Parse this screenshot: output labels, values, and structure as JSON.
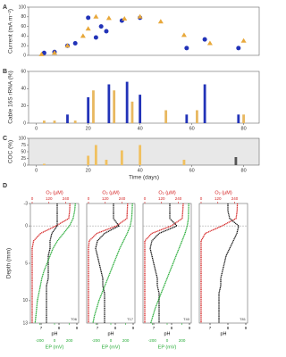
{
  "chart_data": [
    {
      "type": "scatter",
      "panel_label": "A",
      "ylabel": "Current (mA m⁻²)",
      "xlim": [
        -3,
        86
      ],
      "ylim": [
        0,
        100
      ],
      "yticks": [
        0,
        20,
        40,
        60,
        80,
        100
      ],
      "series": [
        {
          "color": "#2233b8",
          "marker": "circle",
          "x": [
            3,
            7,
            12,
            15,
            20,
            23,
            25,
            27,
            33,
            40,
            58,
            65,
            78
          ],
          "values": [
            5,
            7,
            20,
            25,
            78,
            37,
            60,
            50,
            72,
            78,
            15,
            33,
            15
          ]
        },
        {
          "color": "#e8a83a",
          "marker": "triangle",
          "x": [
            2,
            7,
            12,
            18,
            20,
            23,
            28,
            34,
            40,
            48,
            57,
            67,
            80
          ],
          "values": [
            2,
            5,
            20,
            40,
            55,
            80,
            77,
            76,
            80,
            70,
            42,
            25,
            30
          ]
        }
      ]
    },
    {
      "type": "bar",
      "panel_label": "B",
      "ylabel": "Cable 16S rRNA (%)",
      "xlim": [
        -3,
        86
      ],
      "xticks": [
        0,
        20,
        40,
        60,
        80
      ],
      "ylim": [
        0,
        60
      ],
      "yticks": [
        0,
        20,
        40,
        60
      ],
      "series": [
        {
          "color": "#2233b8",
          "x": [
            12,
            20,
            28,
            35,
            40,
            58,
            65,
            78
          ],
          "values": [
            10,
            30,
            45,
            48,
            33,
            10,
            45,
            10
          ]
        },
        {
          "color": "#e8b860",
          "x": [
            3,
            7,
            15,
            22,
            30,
            37,
            50,
            62,
            80
          ],
          "values": [
            3,
            3,
            3,
            38,
            38,
            25,
            15,
            15,
            10
          ]
        }
      ]
    },
    {
      "type": "bar",
      "panel_label": "C",
      "ylabel": "COC (%)",
      "xlabel": "Time (days)",
      "background": "#e8e8e8",
      "xlim": [
        -3,
        86
      ],
      "xticks": [
        0,
        20,
        40,
        60,
        80
      ],
      "ylim": [
        0,
        100
      ],
      "yticks": [
        0,
        25,
        50,
        75,
        100
      ],
      "series": [
        {
          "color": "#f0c060",
          "x": [
            3,
            20,
            23,
            27,
            33,
            40,
            57
          ],
          "values": [
            5,
            35,
            75,
            20,
            55,
            75,
            20
          ]
        },
        {
          "color": "#555555",
          "x": [
            77
          ],
          "values": [
            30
          ]
        }
      ]
    },
    {
      "type": "profile",
      "panel_label": "D",
      "ylabel": "Depth (mm)",
      "tag": "T06",
      "depth": [
        -3,
        -2,
        -1,
        0,
        1,
        2,
        3,
        4,
        5,
        6,
        7,
        8,
        9,
        10,
        11,
        12,
        13
      ],
      "ylim": [
        -3,
        13
      ],
      "yticks": [
        -3,
        0,
        5,
        10,
        13
      ],
      "series": [
        {
          "label": "O₂ (µM)",
          "color": "#d42020",
          "axis": "top",
          "xlim": [
            0,
            320
          ],
          "xticks": [
            0,
            120,
            240
          ],
          "values": [
            270,
            268,
            262,
            170,
            60,
            10,
            0,
            0,
            0,
            0,
            0,
            0,
            0,
            0,
            0,
            0,
            0
          ]
        },
        {
          "label": "pH",
          "color": "#111111",
          "axis": "bottom",
          "xlim": [
            6.5,
            9
          ],
          "xticks": [
            7,
            8,
            9
          ],
          "values": [
            7.9,
            7.9,
            7.9,
            7.9,
            7.6,
            7.5,
            7.5,
            7.4,
            7.4,
            7.4,
            7.4,
            7.3,
            7.3,
            7.3,
            7.3,
            7.3,
            7.3
          ]
        },
        {
          "label": "EP (mV)",
          "color": "#22aa33",
          "axis": "bottom2",
          "xlim": [
            -300,
            300
          ],
          "xticks": [
            -200,
            0,
            200
          ],
          "values": [
            280,
            270,
            250,
            200,
            120,
            40,
            -20,
            -60,
            -100,
            -140,
            -170,
            -190,
            -210,
            -230,
            -240,
            -250,
            -260
          ]
        }
      ]
    },
    {
      "type": "profile",
      "tag": "T17",
      "depth": [
        -3,
        -2,
        -1,
        0,
        1,
        2,
        3,
        4,
        5,
        6,
        7,
        8,
        9,
        10,
        11,
        12,
        13
      ],
      "ylim": [
        -3,
        13
      ],
      "series": [
        {
          "label": "O₂ (µM)",
          "color": "#d42020",
          "axis": "top",
          "xlim": [
            0,
            320
          ],
          "xticks": [
            0,
            120,
            240
          ],
          "values": [
            280,
            278,
            275,
            200,
            60,
            5,
            0,
            0,
            0,
            0,
            0,
            0,
            0,
            0,
            0,
            0,
            0
          ]
        },
        {
          "label": "pH",
          "color": "#111111",
          "axis": "bottom",
          "xlim": [
            6.5,
            9
          ],
          "xticks": [
            7,
            8,
            9
          ],
          "values": [
            7.9,
            7.9,
            7.9,
            8.2,
            7.4,
            7.0,
            6.9,
            7.0,
            7.1,
            7.2,
            7.3,
            7.3,
            7.4,
            7.4,
            7.4,
            7.4,
            7.4
          ]
        },
        {
          "label": "EP (mV)",
          "color": "#22aa33",
          "axis": "bottom2",
          "xlim": [
            -300,
            300
          ],
          "xticks": [
            -200,
            0,
            200
          ],
          "values": [
            290,
            285,
            280,
            260,
            220,
            170,
            120,
            80,
            40,
            0,
            -40,
            -80,
            -120,
            -160,
            -190,
            -220,
            -240
          ]
        }
      ]
    },
    {
      "type": "profile",
      "tag": "T40",
      "depth": [
        -3,
        -2,
        -1,
        0,
        1,
        2,
        3,
        4,
        5,
        6,
        7,
        8,
        9,
        10,
        11,
        12,
        13
      ],
      "ylim": [
        -3,
        13
      ],
      "series": [
        {
          "label": "O₂ (µM)",
          "color": "#d42020",
          "axis": "top",
          "xlim": [
            0,
            320
          ],
          "xticks": [
            0,
            120,
            240
          ],
          "values": [
            275,
            272,
            268,
            190,
            50,
            0,
            0,
            0,
            0,
            0,
            0,
            0,
            0,
            0,
            0,
            0,
            0
          ]
        },
        {
          "label": "pH",
          "color": "#111111",
          "axis": "bottom",
          "xlim": [
            6.5,
            9
          ],
          "xticks": [
            7,
            8,
            9
          ],
          "values": [
            7.9,
            7.9,
            7.9,
            8.3,
            7.3,
            6.9,
            6.8,
            6.9,
            7.0,
            7.1,
            7.2,
            7.2,
            7.3,
            7.3,
            7.3,
            7.3,
            7.3
          ]
        },
        {
          "label": "EP (mV)",
          "color": "#22aa33",
          "axis": "bottom2",
          "xlim": [
            -300,
            300
          ],
          "xticks": [
            -200,
            0,
            200
          ],
          "values": [
            290,
            288,
            285,
            270,
            240,
            200,
            160,
            120,
            80,
            40,
            0,
            -40,
            -80,
            -120,
            -160,
            -190,
            -220
          ]
        }
      ]
    },
    {
      "type": "profile",
      "tag": "T81",
      "depth": [
        -3,
        -2,
        -1,
        0,
        1,
        2,
        3,
        4,
        5,
        6,
        7,
        8,
        9,
        10,
        11,
        12,
        13
      ],
      "ylim": [
        -3,
        13
      ],
      "series": [
        {
          "label": "O₂ (µM)",
          "color": "#d42020",
          "axis": "top",
          "xlim": [
            0,
            320
          ],
          "xticks": [
            0,
            120,
            240
          ],
          "values": [
            260,
            258,
            250,
            150,
            30,
            0,
            0,
            0,
            0,
            0,
            0,
            0,
            0,
            0,
            0,
            0,
            0
          ]
        },
        {
          "label": "pH",
          "color": "#111111",
          "axis": "bottom",
          "xlim": [
            6.5,
            9
          ],
          "xticks": [
            7,
            8,
            9
          ],
          "values": [
            8.0,
            8.0,
            8.1,
            8.6,
            8.5,
            8.3,
            8.1,
            7.9,
            7.8,
            7.7,
            7.6,
            7.6,
            7.5,
            7.5,
            7.5,
            7.5,
            7.5
          ]
        }
      ]
    }
  ]
}
